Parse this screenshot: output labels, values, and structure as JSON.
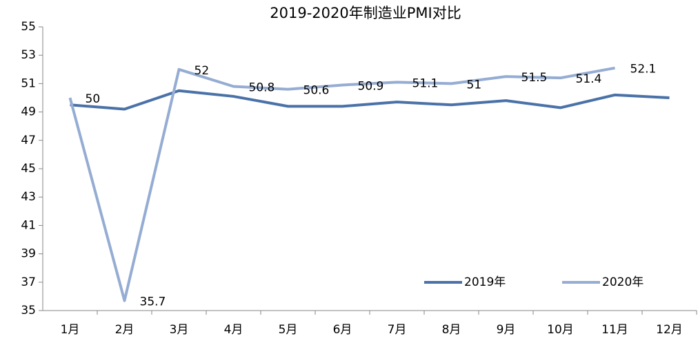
{
  "chart_data": {
    "type": "line",
    "title": "2019-2020年制造业PMI对比",
    "categories": [
      "1月",
      "2月",
      "3月",
      "4月",
      "5月",
      "6月",
      "7月",
      "8月",
      "9月",
      "10月",
      "11月",
      "12月"
    ],
    "series": [
      {
        "name": "2019年",
        "color": "#4a72a8",
        "values": [
          49.5,
          49.2,
          50.5,
          50.1,
          49.4,
          49.4,
          49.7,
          49.5,
          49.8,
          49.3,
          50.2,
          50.0
        ]
      },
      {
        "name": "2020年",
        "color": "#95acd3",
        "values": [
          50,
          35.7,
          52,
          50.8,
          50.6,
          50.9,
          51.1,
          51,
          51.5,
          51.4,
          52.1,
          null
        ],
        "data_labels": true
      }
    ],
    "ylim": [
      35,
      55
    ],
    "yticks": [
      35,
      37,
      39,
      41,
      43,
      45,
      47,
      49,
      51,
      53,
      55
    ],
    "grid": false,
    "legend": "lower right"
  }
}
